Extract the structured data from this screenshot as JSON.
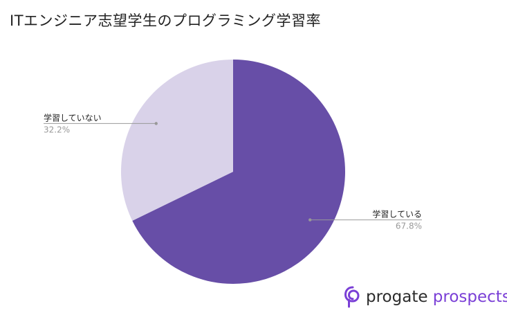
{
  "title": "ITエンジニア志望学生のプログラミング学習率",
  "chart_data": {
    "type": "pie",
    "title": "ITエンジニア志望学生のプログラミング学習率",
    "slices": [
      {
        "label": "学習している",
        "value": 67.8,
        "value_label": "67.8%",
        "color": "#674ea7"
      },
      {
        "label": "学習していない",
        "value": 32.2,
        "value_label": "32.2%",
        "color": "#d9d2e9"
      }
    ],
    "start": "12 o'clock",
    "direction": "clockwise",
    "label_placement": "outside with leader lines"
  },
  "label_colors": {
    "name": "#222222",
    "value": "#999999",
    "leader": "#999999"
  },
  "logo": {
    "word1": "progate",
    "word2": "prospects",
    "word1_color": "#2c2c2c",
    "word2_color": "#7a3fd6"
  }
}
